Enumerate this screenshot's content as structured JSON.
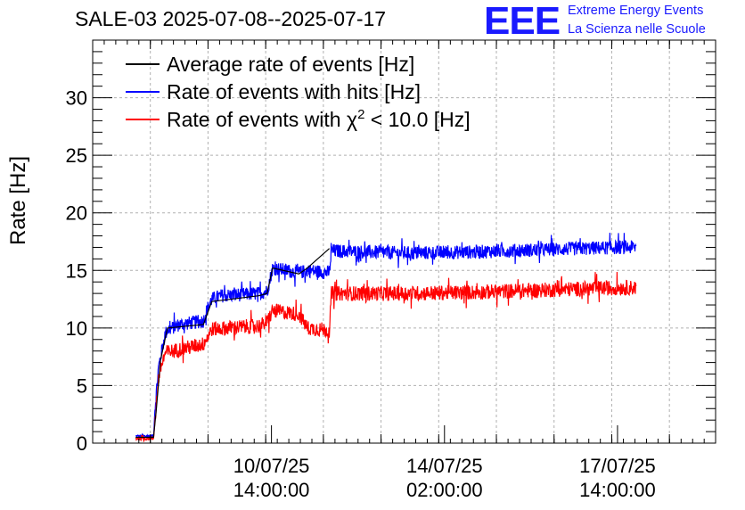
{
  "chart_data": {
    "type": "line",
    "title": "SALE-03 2025-07-08--2025-07-17",
    "xlabel": "",
    "ylabel": "Rate [Hz]",
    "ylim": [
      0,
      35
    ],
    "xlim_days": [
      0,
      9.0
    ],
    "grid": true,
    "legend_position": "top-left",
    "y_ticks": [
      0,
      5,
      10,
      15,
      20,
      25,
      30
    ],
    "x_ticks": [
      {
        "day": 2.583,
        "line1": "10/07/25",
        "line2": "14:00:00"
      },
      {
        "day": 5.083,
        "line1": "14/07/25",
        "line2": "02:00:00"
      },
      {
        "day": 7.583,
        "line1": "17/07/25",
        "line2": "14:00:00"
      }
    ],
    "series": [
      {
        "name": "Average rate of events [Hz]",
        "color": "#000000",
        "x": [
          0.62,
          0.88,
          0.92,
          0.98,
          1.08,
          1.6,
          1.72,
          2.4,
          2.52,
          2.6,
          2.68,
          2.98,
          3.1,
          3.42
        ],
        "y": [
          0.5,
          0.5,
          3.0,
          7.2,
          10.0,
          10.3,
          12.3,
          12.8,
          13.0,
          15.2,
          15.1,
          14.7,
          15.2,
          16.9
        ]
      },
      {
        "name": "Rate of events with hits [Hz]",
        "color": "#0000ff",
        "noise": 0.6,
        "x": [
          0.62,
          0.88,
          0.9,
          0.95,
          0.98,
          1.05,
          1.08,
          1.25,
          1.6,
          1.65,
          1.72,
          1.85,
          2.42,
          2.52,
          2.6,
          2.98,
          3.1,
          3.42,
          3.45,
          4.5,
          5.5,
          6.5,
          7.6,
          7.85
        ],
        "y": [
          0.6,
          0.6,
          3.0,
          6.5,
          7.5,
          9.5,
          9.8,
          10.3,
          10.6,
          11.6,
          12.5,
          12.8,
          13.0,
          13.2,
          15.2,
          14.8,
          15.0,
          14.8,
          16.7,
          16.5,
          16.6,
          16.8,
          17.0,
          17.0
        ]
      },
      {
        "name": "Rate of events with χ² < 10.0 [Hz]",
        "color": "#ff0000",
        "noise": 0.65,
        "x": [
          0.62,
          0.88,
          0.9,
          0.95,
          0.98,
          1.05,
          1.08,
          1.6,
          1.72,
          2.42,
          2.52,
          2.6,
          2.98,
          3.1,
          3.42,
          3.45,
          4.5,
          5.5,
          6.5,
          7.6,
          7.85
        ],
        "y": [
          0.4,
          0.4,
          2.0,
          5.5,
          6.5,
          7.8,
          7.9,
          8.6,
          9.9,
          10.2,
          10.5,
          11.5,
          11.2,
          10.0,
          9.8,
          13.0,
          13.0,
          13.1,
          13.3,
          13.5,
          13.5
        ]
      }
    ]
  },
  "legend": {
    "average": "Average rate of events [Hz]",
    "hits": "Rate of events with hits [Hz]",
    "chi_prefix": "Rate of events with χ",
    "chi_sup": "2",
    "chi_suffix": " < 10.0 [Hz]"
  },
  "logo": {
    "mark": "EEE",
    "line1": "Extreme Energy Events",
    "line2": "La Scienza nelle Scuole"
  },
  "colors": {
    "average": "#000000",
    "hits": "#0000ff",
    "chi2": "#ff0000",
    "logo": "#1a1aff"
  }
}
